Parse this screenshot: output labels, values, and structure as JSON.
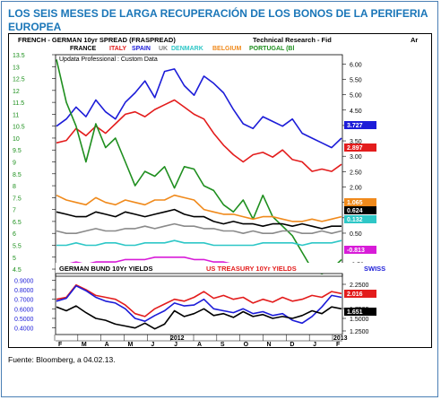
{
  "headline": "LOS SEIS MESES DE LARGA RECUPERACIÓN DE LOS BONOS DE LA PERIFERIA EUROPEA",
  "source": "Fuente: Bloomberg, a 04.02.13.",
  "chart_data": [
    {
      "type": "line",
      "title": "FRENCH - GERMAN 10yr SPREAD (FRASPREAD)",
      "provider_label": "Technical Research - Fid",
      "subtitle": "Updata Professional : Custom Data",
      "corner_label": "Ar",
      "legend": [
        "FRANCE",
        "ITALY",
        "SPAIN",
        "UK",
        "DENMARK",
        "BELGIUM",
        "PORTUGAL (Bl"
      ],
      "legend_colors": [
        "#000000",
        "#e31c1c",
        "#1c1cd8",
        "#7f7f7f",
        "#2ec7c7",
        "#f08a1c",
        "#1f8f1f"
      ],
      "legend_placement": "top",
      "left_axis": [
        "13.5",
        "13",
        "12.5",
        "12",
        "11.5",
        "11",
        "10.5",
        "10",
        "9.5",
        "9",
        "8.5",
        "8",
        "7.5",
        "7",
        "6.5",
        "6",
        "5.5",
        "5",
        "4.5"
      ],
      "right_axis": [
        "6.00",
        "5.50",
        "5.00",
        "4.50",
        "4.00",
        "3.50",
        "3.00",
        "2.50",
        "2.00",
        "1.50",
        "1.00",
        "0.50",
        "-0.50"
      ],
      "ylim": [
        4.2,
        13.5
      ],
      "right_ylim": [
        -0.9,
        6.3
      ],
      "value_badges": [
        {
          "text": "3.727",
          "color": "#1c1cd8"
        },
        {
          "text": "2.897",
          "color": "#e31c1c"
        },
        {
          "text": "1.065",
          "color": "#f08a1c"
        },
        {
          "text": "0.624",
          "color": "#000000"
        },
        {
          "text": "0.132",
          "color": "#2ec7c7"
        },
        {
          "text": "-0.813",
          "color": "#d81cd8"
        }
      ],
      "series": [
        {
          "color": "#1c1cd8",
          "values": [
            10.5,
            10.8,
            11.3,
            10.9,
            11.6,
            11.1,
            10.8,
            11.5,
            11.9,
            12.4,
            11.7,
            12.8,
            12.9,
            12.2,
            11.8,
            12.6,
            12.3,
            11.9,
            11.2,
            10.6,
            10.4,
            10.9,
            10.7,
            10.5,
            10.8,
            10.2,
            10.0,
            9.8,
            9.6,
            10.0
          ]
        },
        {
          "color": "#e31c1c",
          "values": [
            9.8,
            9.9,
            10.4,
            10.1,
            10.5,
            10.2,
            10.6,
            11.0,
            11.1,
            10.9,
            11.2,
            11.4,
            11.6,
            11.3,
            11.0,
            10.8,
            10.2,
            9.7,
            9.3,
            9.0,
            9.3,
            9.4,
            9.2,
            9.5,
            9.1,
            9.0,
            8.6,
            8.7,
            8.6,
            8.9
          ]
        },
        {
          "color": "#1f8f1f",
          "values": [
            13.3,
            11.5,
            10.5,
            9.0,
            10.6,
            9.6,
            10.0,
            9.0,
            8.0,
            8.6,
            8.4,
            8.8,
            7.9,
            8.8,
            8.7,
            8.0,
            7.8,
            7.2,
            6.9,
            7.4,
            6.6,
            7.6,
            6.7,
            6.3,
            5.9,
            5.2,
            4.5,
            4.3,
            4.5,
            4.9
          ]
        },
        {
          "color": "#f08a1c",
          "values": [
            7.6,
            7.4,
            7.3,
            7.2,
            7.5,
            7.3,
            7.2,
            7.4,
            7.3,
            7.2,
            7.4,
            7.4,
            7.6,
            7.5,
            7.4,
            7.0,
            6.9,
            6.8,
            6.8,
            6.7,
            6.6,
            6.7,
            6.7,
            6.6,
            6.5,
            6.5,
            6.6,
            6.5,
            6.6,
            6.7
          ]
        },
        {
          "color": "#000000",
          "values": [
            6.9,
            6.8,
            6.7,
            6.7,
            6.9,
            6.8,
            6.7,
            6.9,
            6.8,
            6.7,
            6.8,
            6.9,
            7.0,
            6.8,
            6.7,
            6.7,
            6.5,
            6.4,
            6.5,
            6.4,
            6.4,
            6.3,
            6.4,
            6.4,
            6.3,
            6.4,
            6.3,
            6.2,
            6.3,
            6.3
          ]
        },
        {
          "color": "#8a8a8a",
          "values": [
            6.1,
            6.0,
            6.0,
            6.1,
            6.2,
            6.1,
            6.1,
            6.2,
            6.2,
            6.3,
            6.2,
            6.3,
            6.4,
            6.3,
            6.3,
            6.2,
            6.2,
            6.1,
            6.1,
            6.0,
            6.1,
            6.0,
            6.0,
            6.1,
            6.1,
            6.0,
            6.0,
            6.1,
            6.0,
            6.1
          ]
        },
        {
          "color": "#2ec7c7",
          "values": [
            5.5,
            5.5,
            5.6,
            5.5,
            5.5,
            5.6,
            5.6,
            5.5,
            5.5,
            5.6,
            5.6,
            5.6,
            5.7,
            5.6,
            5.6,
            5.6,
            5.5,
            5.5,
            5.5,
            5.5,
            5.5,
            5.6,
            5.6,
            5.6,
            5.6,
            5.5,
            5.6,
            5.6,
            5.6,
            5.7
          ]
        },
        {
          "color": "#d81cd8",
          "values": [
            4.7,
            4.7,
            4.8,
            4.7,
            4.8,
            4.8,
            4.8,
            4.9,
            4.9,
            4.9,
            5.0,
            5.0,
            5.0,
            5.0,
            4.9,
            4.9,
            4.8,
            4.8,
            4.7,
            4.7,
            4.7,
            4.6,
            4.6,
            4.7,
            4.6,
            4.5,
            4.6,
            4.6,
            4.6,
            4.7
          ]
        }
      ]
    },
    {
      "type": "line",
      "title": "GERMAN BUND 10Yr YIELDS",
      "title2": "US TREASURY 10Yr YIELDS",
      "title3": "SWISS",
      "left_axis": [
        "0.9000",
        "0.8000",
        "0.7000",
        "0.6000",
        "0.5000",
        "0.4000"
      ],
      "right_axis": [
        "2.2500",
        "1.7500",
        "1.5000",
        "1.2500"
      ],
      "ylim": [
        0.35,
        0.95
      ],
      "value_badges": [
        {
          "text": "2.016",
          "color": "#e31c1c"
        },
        {
          "text": "1.651",
          "color": "#000000"
        }
      ],
      "months": [
        "F",
        "M",
        "A",
        "M",
        "J",
        "J",
        "A",
        "S",
        "O",
        "N",
        "D",
        "J",
        "F"
      ],
      "year_labels": [
        "2012",
        "2013"
      ],
      "series": [
        {
          "color": "#e31c1c",
          "values": [
            0.7,
            0.72,
            0.85,
            0.8,
            0.74,
            0.72,
            0.7,
            0.64,
            0.55,
            0.52,
            0.6,
            0.65,
            0.7,
            0.68,
            0.72,
            0.78,
            0.71,
            0.74,
            0.7,
            0.72,
            0.66,
            0.7,
            0.67,
            0.72,
            0.68,
            0.7,
            0.74,
            0.72,
            0.78,
            0.76
          ]
        },
        {
          "color": "#1c1cd8",
          "values": [
            0.68,
            0.71,
            0.84,
            0.79,
            0.72,
            0.68,
            0.66,
            0.6,
            0.5,
            0.47,
            0.53,
            0.58,
            0.66,
            0.63,
            0.64,
            0.7,
            0.6,
            0.58,
            0.56,
            0.6,
            0.55,
            0.57,
            0.53,
            0.55,
            0.48,
            0.45,
            0.52,
            0.62,
            0.74,
            0.72
          ]
        },
        {
          "color": "#000000",
          "values": [
            0.62,
            0.58,
            0.63,
            0.56,
            0.5,
            0.48,
            0.44,
            0.42,
            0.4,
            0.45,
            0.39,
            0.44,
            0.58,
            0.52,
            0.55,
            0.6,
            0.53,
            0.55,
            0.51,
            0.57,
            0.52,
            0.54,
            0.5,
            0.52,
            0.5,
            0.53,
            0.58,
            0.55,
            0.62,
            0.6
          ]
        }
      ]
    }
  ]
}
